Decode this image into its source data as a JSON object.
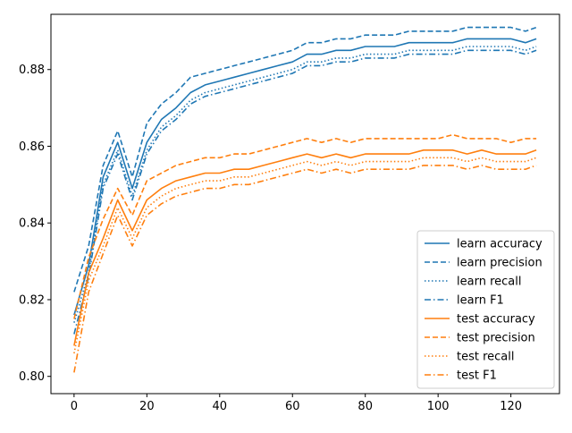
{
  "chart_data": {
    "type": "line",
    "title": "",
    "xlabel": "",
    "ylabel": "",
    "xlim": [
      -6.35,
      133.35
    ],
    "ylim": [
      0.7955,
      0.8944
    ],
    "x_ticks": [
      0,
      20,
      40,
      60,
      80,
      100,
      120
    ],
    "y_ticks": [
      0.8,
      0.82,
      0.84,
      0.86,
      0.88
    ],
    "y_tick_labels": [
      "0.80",
      "0.82",
      "0.84",
      "0.86",
      "0.88"
    ],
    "grid": false,
    "legend_position": "lower-right",
    "x": [
      0,
      4,
      8,
      12,
      16,
      20,
      24,
      28,
      32,
      36,
      40,
      44,
      48,
      52,
      56,
      60,
      64,
      68,
      72,
      76,
      80,
      84,
      88,
      92,
      96,
      100,
      104,
      108,
      112,
      116,
      120,
      124,
      127
    ],
    "series": [
      {
        "name": "learn accuracy",
        "color": "#1f77b4",
        "dash": "solid",
        "values": [
          0.816,
          0.829,
          0.852,
          0.861,
          0.849,
          0.861,
          0.867,
          0.87,
          0.874,
          0.876,
          0.877,
          0.878,
          0.879,
          0.88,
          0.881,
          0.882,
          0.884,
          0.884,
          0.885,
          0.885,
          0.886,
          0.886,
          0.886,
          0.887,
          0.887,
          0.887,
          0.887,
          0.888,
          0.888,
          0.888,
          0.888,
          0.887,
          0.888
        ]
      },
      {
        "name": "learn precision",
        "color": "#1f77b4",
        "dash": "dashed",
        "values": [
          0.822,
          0.834,
          0.855,
          0.864,
          0.852,
          0.866,
          0.871,
          0.874,
          0.878,
          0.879,
          0.88,
          0.881,
          0.882,
          0.883,
          0.884,
          0.885,
          0.887,
          0.887,
          0.888,
          0.888,
          0.889,
          0.889,
          0.889,
          0.89,
          0.89,
          0.89,
          0.89,
          0.891,
          0.891,
          0.891,
          0.891,
          0.89,
          0.891
        ]
      },
      {
        "name": "learn recall",
        "color": "#1f77b4",
        "dash": "dotted",
        "values": [
          0.814,
          0.827,
          0.85,
          0.859,
          0.847,
          0.859,
          0.865,
          0.868,
          0.872,
          0.874,
          0.875,
          0.876,
          0.877,
          0.878,
          0.879,
          0.88,
          0.882,
          0.882,
          0.883,
          0.883,
          0.884,
          0.884,
          0.884,
          0.885,
          0.885,
          0.885,
          0.885,
          0.886,
          0.886,
          0.886,
          0.886,
          0.885,
          0.886
        ]
      },
      {
        "name": "learn F1",
        "color": "#1f77b4",
        "dash": "dashdot",
        "values": [
          0.811,
          0.826,
          0.849,
          0.858,
          0.846,
          0.858,
          0.864,
          0.867,
          0.871,
          0.873,
          0.874,
          0.875,
          0.876,
          0.877,
          0.878,
          0.879,
          0.881,
          0.881,
          0.882,
          0.882,
          0.883,
          0.883,
          0.883,
          0.884,
          0.884,
          0.884,
          0.884,
          0.885,
          0.885,
          0.885,
          0.885,
          0.884,
          0.885
        ]
      },
      {
        "name": "test accuracy",
        "color": "#ff7f0e",
        "dash": "solid",
        "values": [
          0.808,
          0.827,
          0.836,
          0.846,
          0.838,
          0.846,
          0.849,
          0.851,
          0.852,
          0.853,
          0.853,
          0.854,
          0.854,
          0.855,
          0.856,
          0.857,
          0.858,
          0.857,
          0.858,
          0.857,
          0.858,
          0.858,
          0.858,
          0.858,
          0.859,
          0.859,
          0.859,
          0.858,
          0.859,
          0.858,
          0.858,
          0.858,
          0.859
        ]
      },
      {
        "name": "test precision",
        "color": "#ff7f0e",
        "dash": "dashed",
        "values": [
          0.815,
          0.831,
          0.841,
          0.849,
          0.842,
          0.851,
          0.853,
          0.855,
          0.856,
          0.857,
          0.857,
          0.858,
          0.858,
          0.859,
          0.86,
          0.861,
          0.862,
          0.861,
          0.862,
          0.861,
          0.862,
          0.862,
          0.862,
          0.862,
          0.862,
          0.862,
          0.863,
          0.862,
          0.862,
          0.862,
          0.861,
          0.862,
          0.862
        ]
      },
      {
        "name": "test recall",
        "color": "#ff7f0e",
        "dash": "dotted",
        "values": [
          0.806,
          0.825,
          0.834,
          0.844,
          0.836,
          0.844,
          0.847,
          0.849,
          0.85,
          0.851,
          0.851,
          0.852,
          0.852,
          0.853,
          0.854,
          0.855,
          0.856,
          0.855,
          0.856,
          0.855,
          0.856,
          0.856,
          0.856,
          0.856,
          0.857,
          0.857,
          0.857,
          0.856,
          0.857,
          0.856,
          0.856,
          0.856,
          0.857
        ]
      },
      {
        "name": "test F1",
        "color": "#ff7f0e",
        "dash": "dashdot",
        "values": [
          0.801,
          0.822,
          0.832,
          0.842,
          0.834,
          0.842,
          0.845,
          0.847,
          0.848,
          0.849,
          0.849,
          0.85,
          0.85,
          0.851,
          0.852,
          0.853,
          0.854,
          0.853,
          0.854,
          0.853,
          0.854,
          0.854,
          0.854,
          0.854,
          0.855,
          0.855,
          0.855,
          0.854,
          0.855,
          0.854,
          0.854,
          0.854,
          0.855
        ]
      }
    ]
  }
}
